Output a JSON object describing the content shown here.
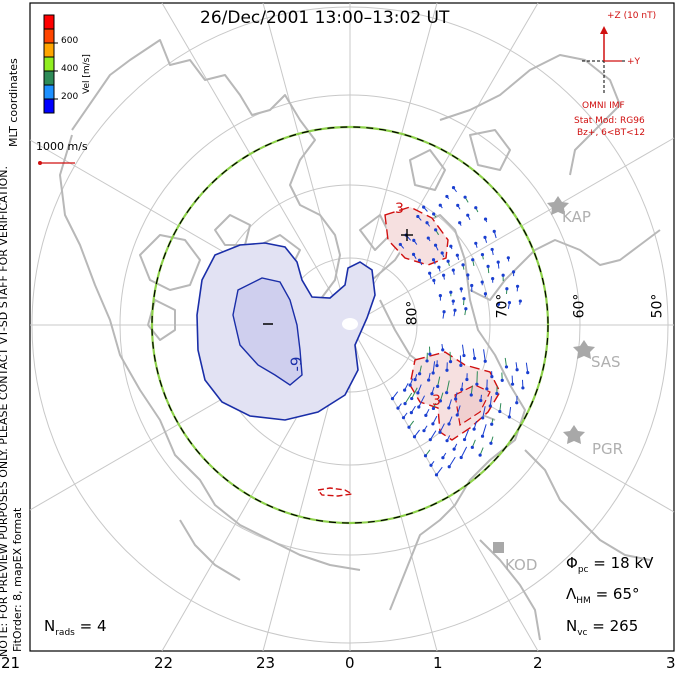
{
  "title": "26/Dec/2001 13:00–13:02 UT",
  "side_text": {
    "coordinates": "MLT coordinates",
    "note": "NOTE: FOR PREVIEW PURPOSES ONLY. PLEASE CONTACT VT-SD STAFF FOR VERIFICATION.",
    "fit": "FitOrder: 8, mapEX format"
  },
  "velocity_scale": {
    "label": "Vel [m/s]",
    "ticks": [
      "600",
      "400",
      "200"
    ],
    "colors": [
      "#0000ff",
      "#1e90ff",
      "#2e8b57",
      "#90ee20",
      "#ffa500",
      "#ff4500",
      "#ff0000"
    ]
  },
  "reference_vector": {
    "label": "1000 m/s"
  },
  "imf": {
    "z_label": "+Z (10 nT)",
    "y_label": "+Y",
    "source": "OMNI IMF",
    "model": "Stat Mod: RG96",
    "condition": "Bz+, 6<BT<12"
  },
  "latitude_labels": [
    "80°",
    "70°",
    "60°",
    "50°"
  ],
  "stations": [
    "KAP",
    "SAS",
    "PGR",
    "KOD"
  ],
  "mlt_ticks": [
    "21",
    "22",
    "23",
    "0",
    "1",
    "2",
    "3"
  ],
  "stats": {
    "phi_symbol": "Φ",
    "phi_sub": "pc",
    "phi_value": "= 18 kV",
    "lambda_symbol": "Λ",
    "lambda_sub": "HM",
    "lambda_value": "= 65°",
    "nvc_symbol": "N",
    "nvc_sub": "vc",
    "nvc_value": "= 265",
    "nrads_symbol": "N",
    "nrads_sub": "rads",
    "nrads_value": "= 4"
  },
  "contours": {
    "negative_label": "-9",
    "negative_marker": "–",
    "positive_label_1": "3",
    "positive_label_2": "3",
    "positive_marker": "+"
  }
}
